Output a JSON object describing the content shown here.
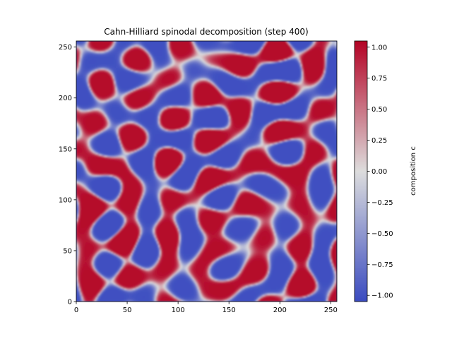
{
  "chart_data": {
    "type": "heatmap",
    "title": "Cahn-Hilliard spinodal decomposition (step 400)",
    "xlabel": "",
    "ylabel": "",
    "xlim": [
      0,
      256
    ],
    "ylim": [
      0,
      256
    ],
    "x_ticks": [
      0,
      50,
      100,
      150,
      200,
      250
    ],
    "y_ticks": [
      0,
      50,
      100,
      150,
      200,
      250
    ],
    "x_tick_labels": [
      "0",
      "50",
      "100",
      "150",
      "200",
      "250"
    ],
    "y_tick_labels": [
      "0",
      "50",
      "100",
      "150",
      "200",
      "250"
    ],
    "colormap": "coolwarm",
    "colormap_stops": [
      "#3b4cc0",
      "#dddddd",
      "#b40426"
    ],
    "value_range": [
      -1.05,
      1.05
    ],
    "colorbar": {
      "label": "composition c",
      "ticks": [
        1.0,
        0.75,
        0.5,
        0.25,
        0.0,
        -0.25,
        -0.5,
        -0.75,
        -1.0
      ],
      "tick_labels": [
        "1.00",
        "0.75",
        "0.50",
        "0.25",
        "0.00",
        "−0.25",
        "−0.50",
        "−0.75",
        "−1.00"
      ]
    },
    "pattern": "labyrinthine bicontinuous domains, c ≈ ±1"
  }
}
